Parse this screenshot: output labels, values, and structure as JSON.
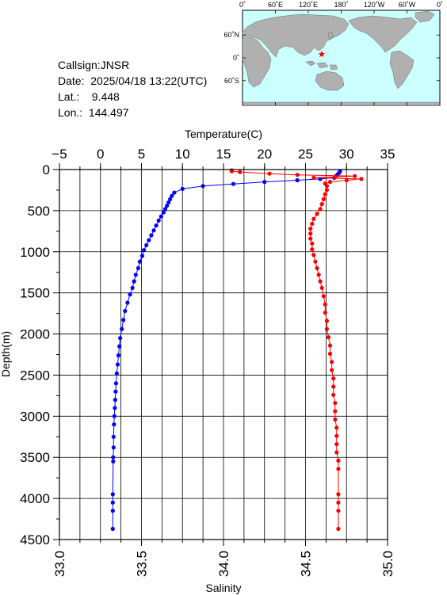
{
  "station": {
    "callsign": "Callsign:JNSR",
    "date": "Date:  2025/04/18 13:22(UTC)",
    "lat": "Lat.:    9.448",
    "lon": "Lon.:  144.497"
  },
  "map": {
    "ocean_color": "#ccffff",
    "land_color": "#b0b0b0",
    "marker_color": "#ff0000",
    "marker_symbol": "star",
    "lon_ticks": [
      "0˚",
      "60˚E",
      "120˚E",
      "180˚",
      "120˚W",
      "60˚W",
      "0˚"
    ],
    "lat_ticks": [
      "60˚N",
      "0˚",
      "60˚S"
    ],
    "station_lon": 144.497,
    "station_lat": 9.448
  },
  "chart_data": {
    "type": "line",
    "title": "",
    "x_top_label": "Temperature(C)",
    "x_bottom_label": "Salinity",
    "ylabel": "Depth(m)",
    "temperature_range": [
      -5,
      35
    ],
    "salinity_range": [
      33.0,
      35.0
    ],
    "depth_range": [
      0,
      4500
    ],
    "y_inverted": true,
    "grid": true,
    "temperature_ticks": [
      "−5",
      "0",
      "5",
      "10",
      "15",
      "20",
      "25",
      "30",
      "35"
    ],
    "salinity_ticks": [
      "33.0",
      "33.5",
      "34.0",
      "34.5",
      "35.0"
    ],
    "depth_ticks": [
      "0",
      "500",
      "1000",
      "1500",
      "2000",
      "2500",
      "3000",
      "3500",
      "4000",
      "4500"
    ],
    "temperature_color": "#0000ff",
    "salinity_color": "#ff0000",
    "series": [
      {
        "quantity": "temperature",
        "points": [
          [
            29.2,
            20
          ],
          [
            29.1,
            40
          ],
          [
            28.9,
            60
          ],
          [
            28.7,
            80
          ],
          [
            28.5,
            100
          ],
          [
            26.8,
            115
          ],
          [
            24.0,
            130
          ],
          [
            20.0,
            150
          ],
          [
            16.2,
            175
          ],
          [
            12.5,
            200
          ],
          [
            10.0,
            235
          ],
          [
            9.0,
            280
          ],
          [
            8.7,
            320
          ],
          [
            8.5,
            360
          ],
          [
            8.3,
            400
          ],
          [
            8.1,
            440
          ],
          [
            7.9,
            480
          ],
          [
            7.7,
            520
          ],
          [
            7.4,
            570
          ],
          [
            7.1,
            620
          ],
          [
            6.8,
            680
          ],
          [
            6.5,
            740
          ],
          [
            6.2,
            800
          ],
          [
            5.9,
            860
          ],
          [
            5.6,
            920
          ],
          [
            5.3,
            980
          ],
          [
            5.1,
            1050
          ],
          [
            4.8,
            1120
          ],
          [
            4.6,
            1200
          ],
          [
            4.3,
            1280
          ],
          [
            4.1,
            1360
          ],
          [
            3.9,
            1440
          ],
          [
            3.6,
            1520
          ],
          [
            3.3,
            1620
          ],
          [
            3.0,
            1720
          ],
          [
            2.8,
            1830
          ],
          [
            2.6,
            1940
          ],
          [
            2.4,
            2050
          ],
          [
            2.3,
            2150
          ],
          [
            2.2,
            2260
          ],
          [
            2.1,
            2370
          ],
          [
            2.0,
            2480
          ],
          [
            1.9,
            2600
          ],
          [
            1.85,
            2700
          ],
          [
            1.8,
            2800
          ],
          [
            1.75,
            2900
          ],
          [
            1.7,
            3000
          ],
          [
            1.65,
            3100
          ],
          [
            1.6,
            3250
          ],
          [
            1.6,
            3380
          ],
          [
            1.55,
            3500
          ],
          [
            1.55,
            3550
          ],
          [
            1.5,
            3950
          ],
          [
            1.5,
            4050
          ],
          [
            1.5,
            4150
          ],
          [
            1.5,
            4370
          ]
        ]
      },
      {
        "quantity": "salinity",
        "points": [
          [
            34.05,
            10
          ],
          [
            34.05,
            20
          ],
          [
            34.1,
            30
          ],
          [
            34.28,
            50
          ],
          [
            34.45,
            65
          ],
          [
            34.8,
            80
          ],
          [
            34.68,
            90
          ],
          [
            34.55,
            100
          ],
          [
            34.84,
            115
          ],
          [
            34.75,
            130
          ],
          [
            34.65,
            150
          ],
          [
            34.62,
            170
          ],
          [
            34.63,
            200
          ],
          [
            34.63,
            250
          ],
          [
            34.62,
            300
          ],
          [
            34.61,
            360
          ],
          [
            34.6,
            420
          ],
          [
            34.59,
            480
          ],
          [
            34.57,
            540
          ],
          [
            34.55,
            600
          ],
          [
            34.54,
            660
          ],
          [
            34.53,
            720
          ],
          [
            34.53,
            780
          ],
          [
            34.53,
            840
          ],
          [
            34.54,
            900
          ],
          [
            34.54,
            970
          ],
          [
            34.55,
            1040
          ],
          [
            34.56,
            1120
          ],
          [
            34.57,
            1200
          ],
          [
            34.58,
            1280
          ],
          [
            34.59,
            1360
          ],
          [
            34.6,
            1440
          ],
          [
            34.61,
            1540
          ],
          [
            34.62,
            1640
          ],
          [
            34.62,
            1740
          ],
          [
            34.63,
            1840
          ],
          [
            34.63,
            1940
          ],
          [
            34.64,
            2040
          ],
          [
            34.65,
            2140
          ],
          [
            34.65,
            2240
          ],
          [
            34.66,
            2340
          ],
          [
            34.66,
            2440
          ],
          [
            34.67,
            2540
          ],
          [
            34.67,
            2640
          ],
          [
            34.67,
            2740
          ],
          [
            34.68,
            2840
          ],
          [
            34.68,
            2940
          ],
          [
            34.68,
            3040
          ],
          [
            34.69,
            3140
          ],
          [
            34.69,
            3240
          ],
          [
            34.69,
            3340
          ],
          [
            34.69,
            3440
          ],
          [
            34.7,
            3540
          ],
          [
            34.7,
            3640
          ],
          [
            34.7,
            3950
          ],
          [
            34.7,
            4050
          ],
          [
            34.7,
            4150
          ],
          [
            34.7,
            4370
          ]
        ]
      }
    ]
  }
}
